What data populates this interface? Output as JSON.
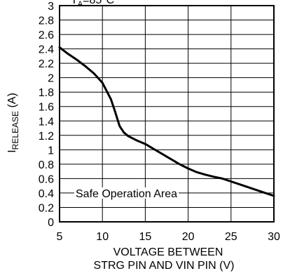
{
  "chart_data": {
    "type": "line",
    "title": "",
    "annotation_top": "T<sub>A</sub>=85°C",
    "annotation_top_parts": {
      "main": "T",
      "sub": "A",
      "rest": "=85°C"
    },
    "region_label": "Safe Operation Area",
    "xlabel_line1": "VOLTAGE BETWEEN",
    "xlabel_line2": "STRG PIN AND VIN PIN (V)",
    "ylabel_main": "I",
    "ylabel_sub": "RELEASE",
    "ylabel_unit": " (A)",
    "xlim": [
      5,
      30
    ],
    "ylim": [
      0,
      3
    ],
    "xticks": [
      5,
      10,
      15,
      20,
      25,
      30
    ],
    "yticks": [
      "0",
      "0.2",
      "0.4",
      "0.6",
      "0.8",
      "1",
      "1.2",
      "1.4",
      "1.6",
      "1.8",
      "2",
      "2.2",
      "2.4",
      "2.6",
      "2.8",
      "3"
    ],
    "grid": true,
    "series": [
      {
        "x": [
          5,
          6,
          7,
          8,
          9,
          10,
          11,
          11.5,
          12,
          12.5,
          13,
          14,
          15,
          16,
          17,
          18,
          19,
          20,
          21,
          22,
          23,
          24,
          25,
          26,
          27,
          28,
          29,
          30
        ],
        "y": [
          2.42,
          2.33,
          2.25,
          2.16,
          2.06,
          1.93,
          1.7,
          1.52,
          1.33,
          1.24,
          1.19,
          1.13,
          1.08,
          1.01,
          0.94,
          0.87,
          0.8,
          0.74,
          0.69,
          0.655,
          0.625,
          0.6,
          0.56,
          0.52,
          0.48,
          0.44,
          0.4,
          0.36
        ]
      }
    ]
  }
}
